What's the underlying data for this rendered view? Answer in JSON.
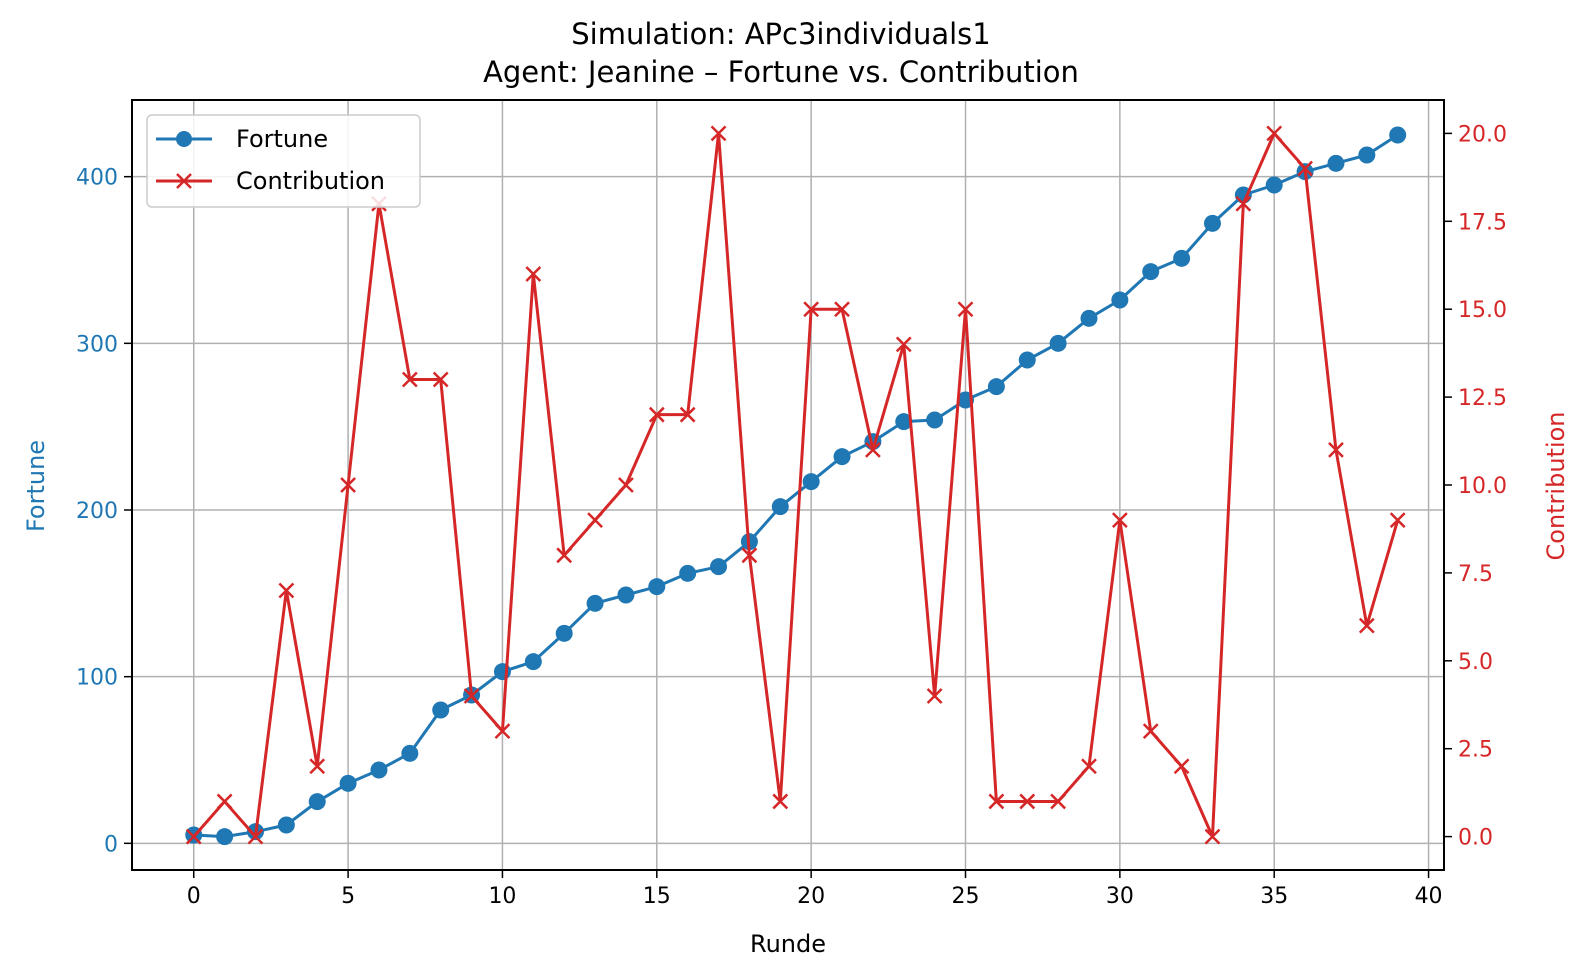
{
  "chart_data": {
    "type": "line",
    "title": "Simulation: APc3individuals1",
    "subtitle": "Agent: Jeanine – Fortune vs. Contribution",
    "xlabel": "Runde",
    "ylabel_left": "Fortune",
    "ylabel_right": "Contribution",
    "xlim": [
      -2,
      40.5
    ],
    "ylim_left": [
      -16,
      446
    ],
    "ylim_right": [
      -0.95,
      20.95
    ],
    "xticks": [
      "0",
      "5",
      "10",
      "15",
      "20",
      "25",
      "30",
      "35",
      "40"
    ],
    "yticks_left": [
      "0",
      "100",
      "200",
      "300",
      "400"
    ],
    "yticks_right": [
      "0.0",
      "2.5",
      "5.0",
      "7.5",
      "10.0",
      "12.5",
      "15.0",
      "17.5",
      "20.0"
    ],
    "grid": true,
    "legend_position": "upper-left",
    "colors": {
      "fortune": "#1f77b4",
      "contribution": "#d62728",
      "grid": "#b0b0b0"
    },
    "x": [
      0,
      1,
      2,
      3,
      4,
      5,
      6,
      7,
      8,
      9,
      10,
      11,
      12,
      13,
      14,
      15,
      16,
      17,
      18,
      19,
      20,
      21,
      22,
      23,
      24,
      25,
      26,
      27,
      28,
      29,
      30,
      31,
      32,
      33,
      34,
      35,
      36,
      37,
      38,
      39
    ],
    "series": [
      {
        "name": "Fortune",
        "axis": "left",
        "marker": "circle",
        "values": [
          5,
          4,
          7,
          11,
          25,
          36,
          44,
          54,
          80,
          89,
          103,
          109,
          126,
          144,
          149,
          154,
          162,
          166,
          181,
          202,
          217,
          232,
          241,
          253,
          254,
          266,
          274,
          290,
          300,
          315,
          326,
          343,
          351,
          372,
          389,
          395,
          403,
          408,
          413,
          425
        ]
      },
      {
        "name": "Contribution",
        "axis": "right",
        "marker": "x",
        "values": [
          0,
          1,
          0,
          7,
          2,
          10,
          18,
          13,
          13,
          4,
          3,
          16,
          8,
          9,
          10,
          12,
          12,
          20,
          8,
          1,
          15,
          15,
          11,
          14,
          4,
          15,
          1,
          1,
          1,
          2,
          9,
          3,
          2,
          0,
          18,
          20,
          19,
          11,
          6,
          9
        ]
      }
    ]
  }
}
